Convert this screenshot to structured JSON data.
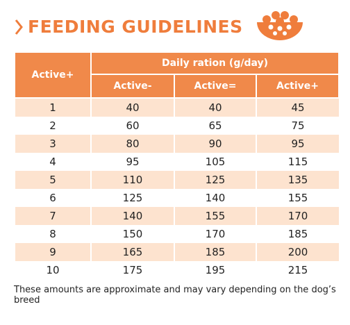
{
  "header": {
    "title": "FEEDING GUIDELINES"
  },
  "table": {
    "row_header": "Active+",
    "group_header": "Daily ration (g/day)",
    "columns": [
      "Active-",
      "Active=",
      "Active+"
    ],
    "rows": [
      [
        1,
        40,
        40,
        45
      ],
      [
        2,
        60,
        65,
        75
      ],
      [
        3,
        80,
        90,
        95
      ],
      [
        4,
        95,
        105,
        115
      ],
      [
        5,
        110,
        125,
        135
      ],
      [
        6,
        125,
        140,
        155
      ],
      [
        7,
        140,
        155,
        170
      ],
      [
        8,
        150,
        170,
        185
      ],
      [
        9,
        165,
        185,
        200
      ],
      [
        10,
        175,
        195,
        215
      ]
    ]
  },
  "footnote": "These amounts are approximate and may vary depending on the dog’s breed"
}
